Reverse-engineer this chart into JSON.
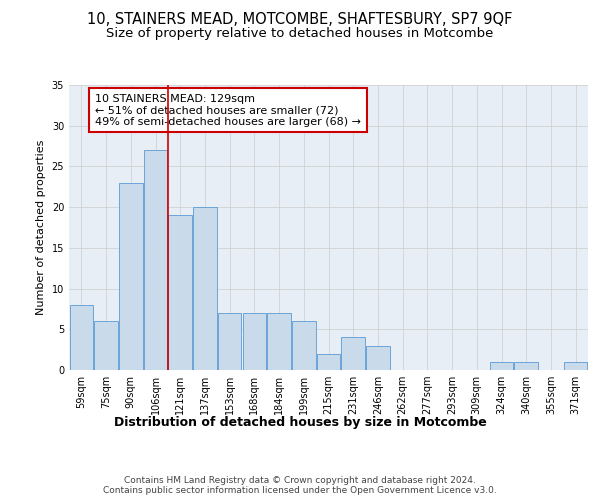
{
  "title1": "10, STAINERS MEAD, MOTCOMBE, SHAFTESBURY, SP7 9QF",
  "title2": "Size of property relative to detached houses in Motcombe",
  "xlabel": "Distribution of detached houses by size in Motcombe",
  "ylabel": "Number of detached properties",
  "categories": [
    "59sqm",
    "75sqm",
    "90sqm",
    "106sqm",
    "121sqm",
    "137sqm",
    "153sqm",
    "168sqm",
    "184sqm",
    "199sqm",
    "215sqm",
    "231sqm",
    "246sqm",
    "262sqm",
    "277sqm",
    "293sqm",
    "309sqm",
    "324sqm",
    "340sqm",
    "355sqm",
    "371sqm"
  ],
  "values": [
    8,
    6,
    23,
    27,
    19,
    20,
    7,
    7,
    7,
    6,
    2,
    4,
    3,
    0,
    0,
    0,
    0,
    1,
    1,
    0,
    1
  ],
  "bar_color": "#c9daea",
  "bar_edge_color": "#5b9bd5",
  "vline_x": 3.5,
  "vline_color": "#cc0000",
  "annotation_text": "10 STAINERS MEAD: 129sqm\n← 51% of detached houses are smaller (72)\n49% of semi-detached houses are larger (68) →",
  "annotation_box_color": "white",
  "annotation_box_edge_color": "#cc0000",
  "ylim": [
    0,
    35
  ],
  "yticks": [
    0,
    5,
    10,
    15,
    20,
    25,
    30,
    35
  ],
  "grid_color": "#cccccc",
  "bg_color": "#e8eef5",
  "footer_text": "Contains HM Land Registry data © Crown copyright and database right 2024.\nContains public sector information licensed under the Open Government Licence v3.0.",
  "title1_fontsize": 10.5,
  "title2_fontsize": 9.5,
  "xlabel_fontsize": 9,
  "ylabel_fontsize": 8,
  "tick_fontsize": 7,
  "annotation_fontsize": 8,
  "footer_fontsize": 6.5
}
